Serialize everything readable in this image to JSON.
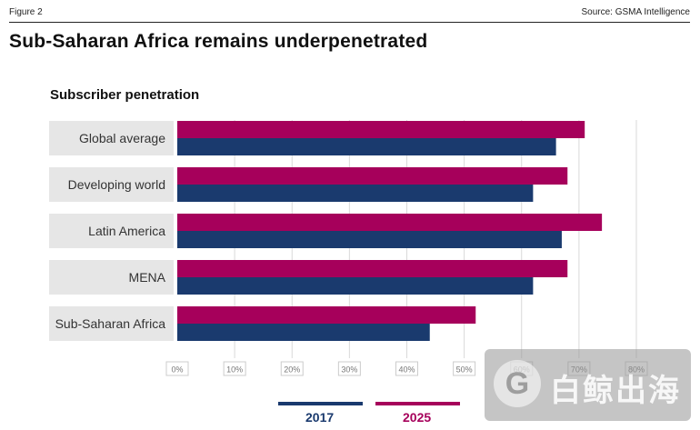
{
  "header": {
    "figure_label": "Figure 2",
    "source": "Source: GSMA Intelligence"
  },
  "title": "Sub-Saharan Africa remains underpenetrated",
  "colors": {
    "c2017": "#1a3a6e",
    "c2025": "#a6005b",
    "grid": "#d9d9d9",
    "cat_bg": "#e6e6e6"
  },
  "chart_data": {
    "type": "bar",
    "orientation": "horizontal",
    "title": "Subscriber penetration",
    "categories": [
      "Global average",
      "Developing world",
      "Latin America",
      "MENA",
      "Sub-Saharan Africa"
    ],
    "series": [
      {
        "name": "2025",
        "color": "#a6005b",
        "values": [
          71,
          68,
          74,
          68,
          52
        ]
      },
      {
        "name": "2017",
        "color": "#1a3a6e",
        "values": [
          66,
          62,
          67,
          62,
          44
        ]
      }
    ],
    "xlim": [
      0,
      80
    ],
    "xticks": [
      "0%",
      "10%",
      "20%",
      "30%",
      "40%",
      "50%",
      "60%",
      "70%",
      "80%"
    ],
    "grid": true,
    "legend": {
      "position": "bottom",
      "entries": [
        "2017",
        "2025"
      ]
    }
  },
  "watermark": {
    "text": "白鲸出海",
    "logo": "G"
  }
}
